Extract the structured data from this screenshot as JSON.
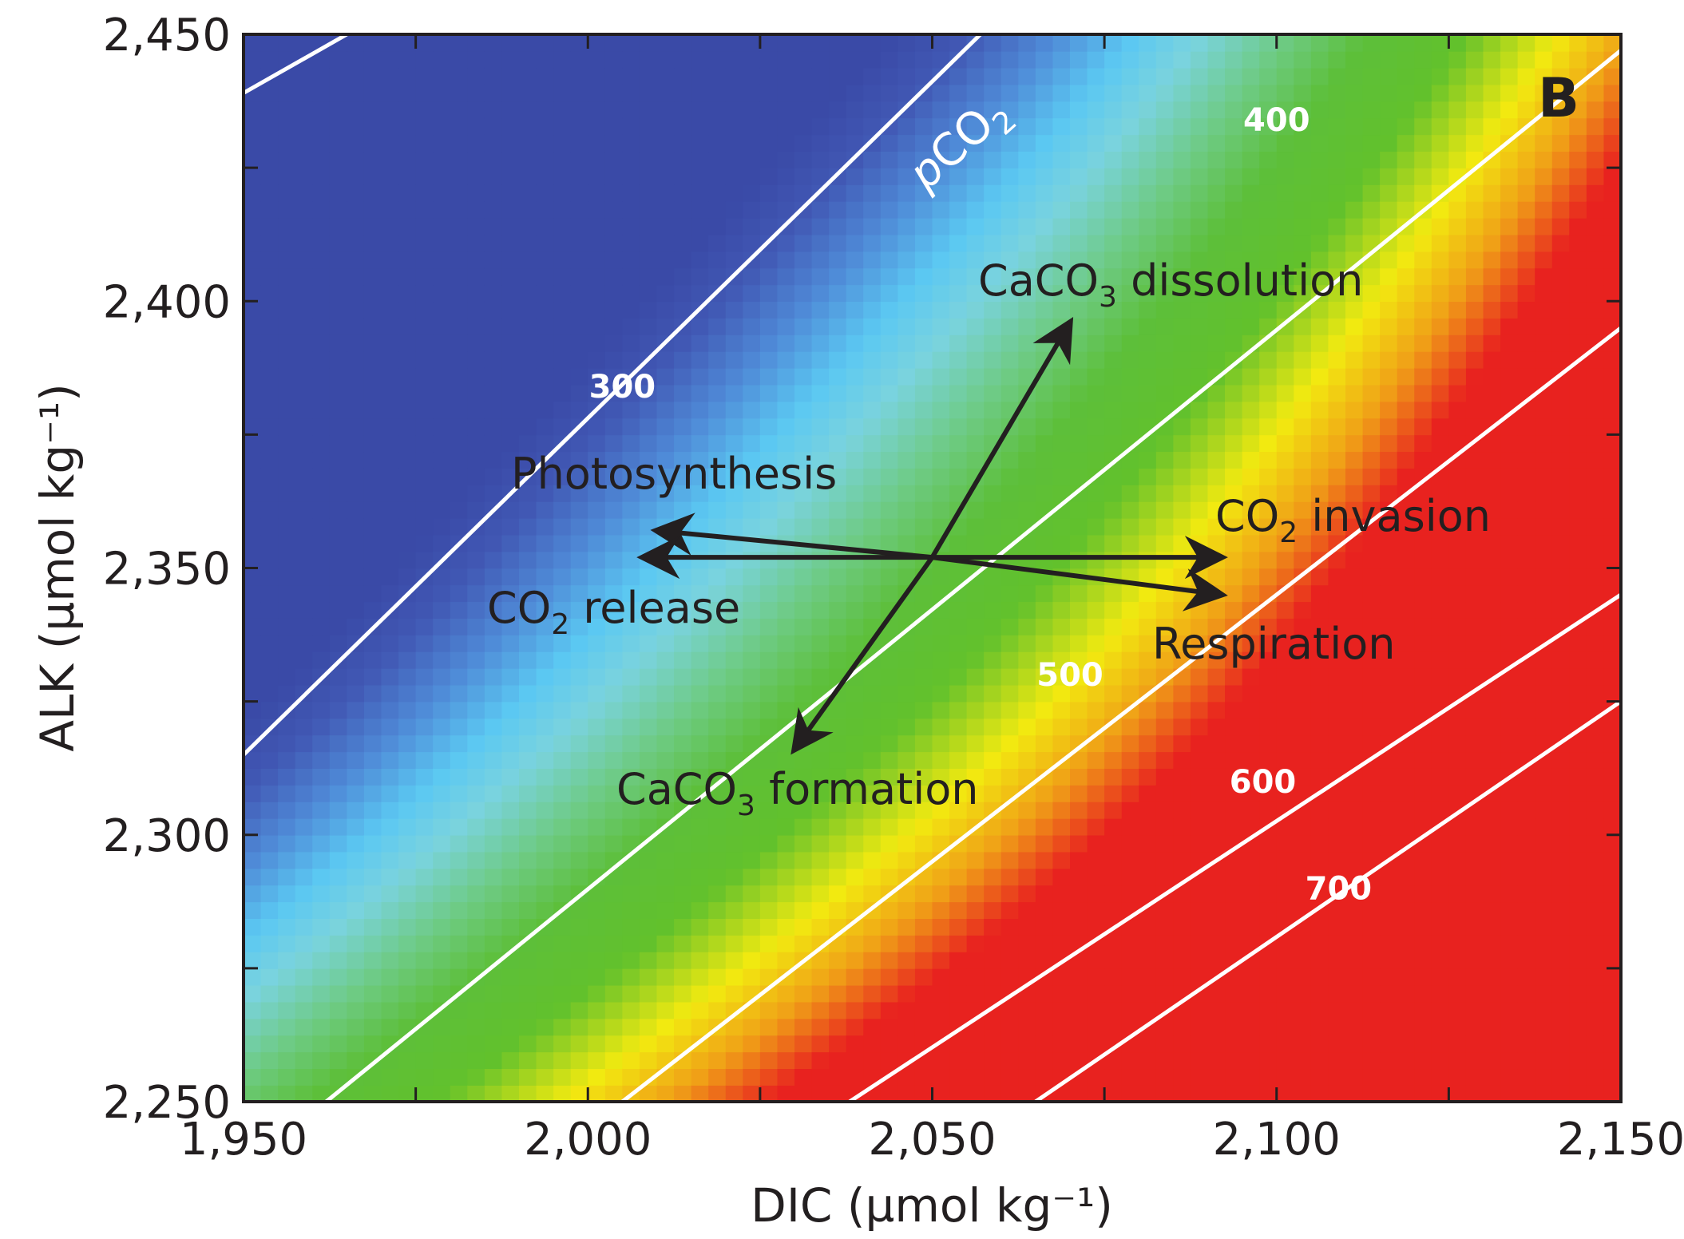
{
  "chart_data": {
    "type": "heatmap",
    "panel_label": "B",
    "xlabel": "DIC (µmol kg⁻¹)",
    "ylabel": "ALK (µmol kg⁻¹)",
    "xlim": [
      1950,
      2150
    ],
    "ylim": [
      2250,
      2450
    ],
    "x_ticks": [
      1950,
      2000,
      2050,
      2100,
      2150
    ],
    "x_tick_labels": [
      "1,950",
      "2,000",
      "2,050",
      "2,100",
      "2,150"
    ],
    "x_minor_ticks": [
      1975,
      2025,
      2075,
      2125
    ],
    "y_ticks": [
      2250,
      2300,
      2350,
      2400,
      2450
    ],
    "y_tick_labels": [
      "2,250",
      "2,300",
      "2,350",
      "2,400",
      "2,450"
    ],
    "y_minor_ticks": [
      2275,
      2325,
      2375,
      2425
    ],
    "field_name": "pCO₂",
    "field_label": {
      "prefix": "p",
      "main": "CO",
      "sub": "2"
    },
    "colorscale": [
      {
        "value": 200,
        "color": "#3a4aa7"
      },
      {
        "value": 260,
        "color": "#4158b4"
      },
      {
        "value": 330,
        "color": "#4f8ad7"
      },
      {
        "value": 400,
        "color": "#5bc8f2"
      },
      {
        "value": 460,
        "color": "#7ad3de"
      },
      {
        "value": 540,
        "color": "#6ecb85"
      },
      {
        "value": 620,
        "color": "#5dbf3a"
      },
      {
        "value": 720,
        "color": "#62c12c"
      },
      {
        "value": 820,
        "color": "#f2ea10"
      },
      {
        "value": 900,
        "color": "#f0a017"
      },
      {
        "value": 980,
        "color": "#e8221f"
      }
    ],
    "contours": [
      {
        "level": null,
        "label": "",
        "points": [
          [
            1950,
            2439
          ],
          [
            1965,
            2450
          ]
        ]
      },
      {
        "level": 300,
        "label": "300",
        "points": [
          [
            1950,
            2315
          ],
          [
            2057,
            2450
          ]
        ]
      },
      {
        "level": 400,
        "label": "400",
        "points": [
          [
            1962,
            2250
          ],
          [
            2150,
            2447
          ]
        ]
      },
      {
        "level": 500,
        "label": "500",
        "points": [
          [
            2005,
            2250
          ],
          [
            2150,
            2395
          ]
        ]
      },
      {
        "level": 600,
        "label": "600",
        "points": [
          [
            2038,
            2250
          ],
          [
            2150,
            2345
          ]
        ]
      },
      {
        "level": 700,
        "label": "700",
        "points": [
          [
            2065,
            2250
          ],
          [
            2150,
            2325
          ]
        ]
      }
    ],
    "contour_labels": [
      {
        "text": "300",
        "x": 2005,
        "y": 2384
      },
      {
        "text": "400",
        "x": 2100,
        "y": 2434
      },
      {
        "text": "500",
        "x": 2070,
        "y": 2330
      },
      {
        "text": "600",
        "x": 2098,
        "y": 2310
      },
      {
        "text": "700",
        "x": 2109,
        "y": 2290
      }
    ],
    "center": {
      "x": 2050,
      "y": 2352
    },
    "processes": [
      {
        "name": "Photosynthesis",
        "to": {
          "x": 2010,
          "y": 2357
        },
        "direction": "DIC −, ALK +"
      },
      {
        "name": "Respiration",
        "to": {
          "x": 2092,
          "y": 2345
        },
        "direction": "DIC +, ALK −"
      },
      {
        "name": "CO₂ release",
        "to": {
          "x": 2008,
          "y": 2352
        },
        "direction": "DIC −"
      },
      {
        "name": "CO₂ invasion",
        "to": {
          "x": 2092,
          "y": 2352
        },
        "direction": "DIC +"
      },
      {
        "name": "CaCO₃ dissolution",
        "to": {
          "x": 2070,
          "y": 2396
        },
        "direction": "DIC +1, ALK +2"
      },
      {
        "name": "CaCO₃ formation",
        "to": {
          "x": 2030,
          "y": 2316
        },
        "direction": "DIC −1, ALK −2"
      }
    ],
    "annotations": {
      "photosynthesis": "Photosynthesis",
      "respiration": "Respiration",
      "co2_release": {
        "main": "CO",
        "sub": "2",
        "rest": " release"
      },
      "co2_invasion": {
        "main": "CO",
        "sub": "2",
        "rest": " invasion"
      },
      "caco3_dissolution": {
        "main": "CaCO",
        "sub": "3",
        "rest": " dissolution"
      },
      "caco3_formation": {
        "main": "CaCO",
        "sub": "3",
        "rest": " formation"
      }
    },
    "grid": false
  }
}
